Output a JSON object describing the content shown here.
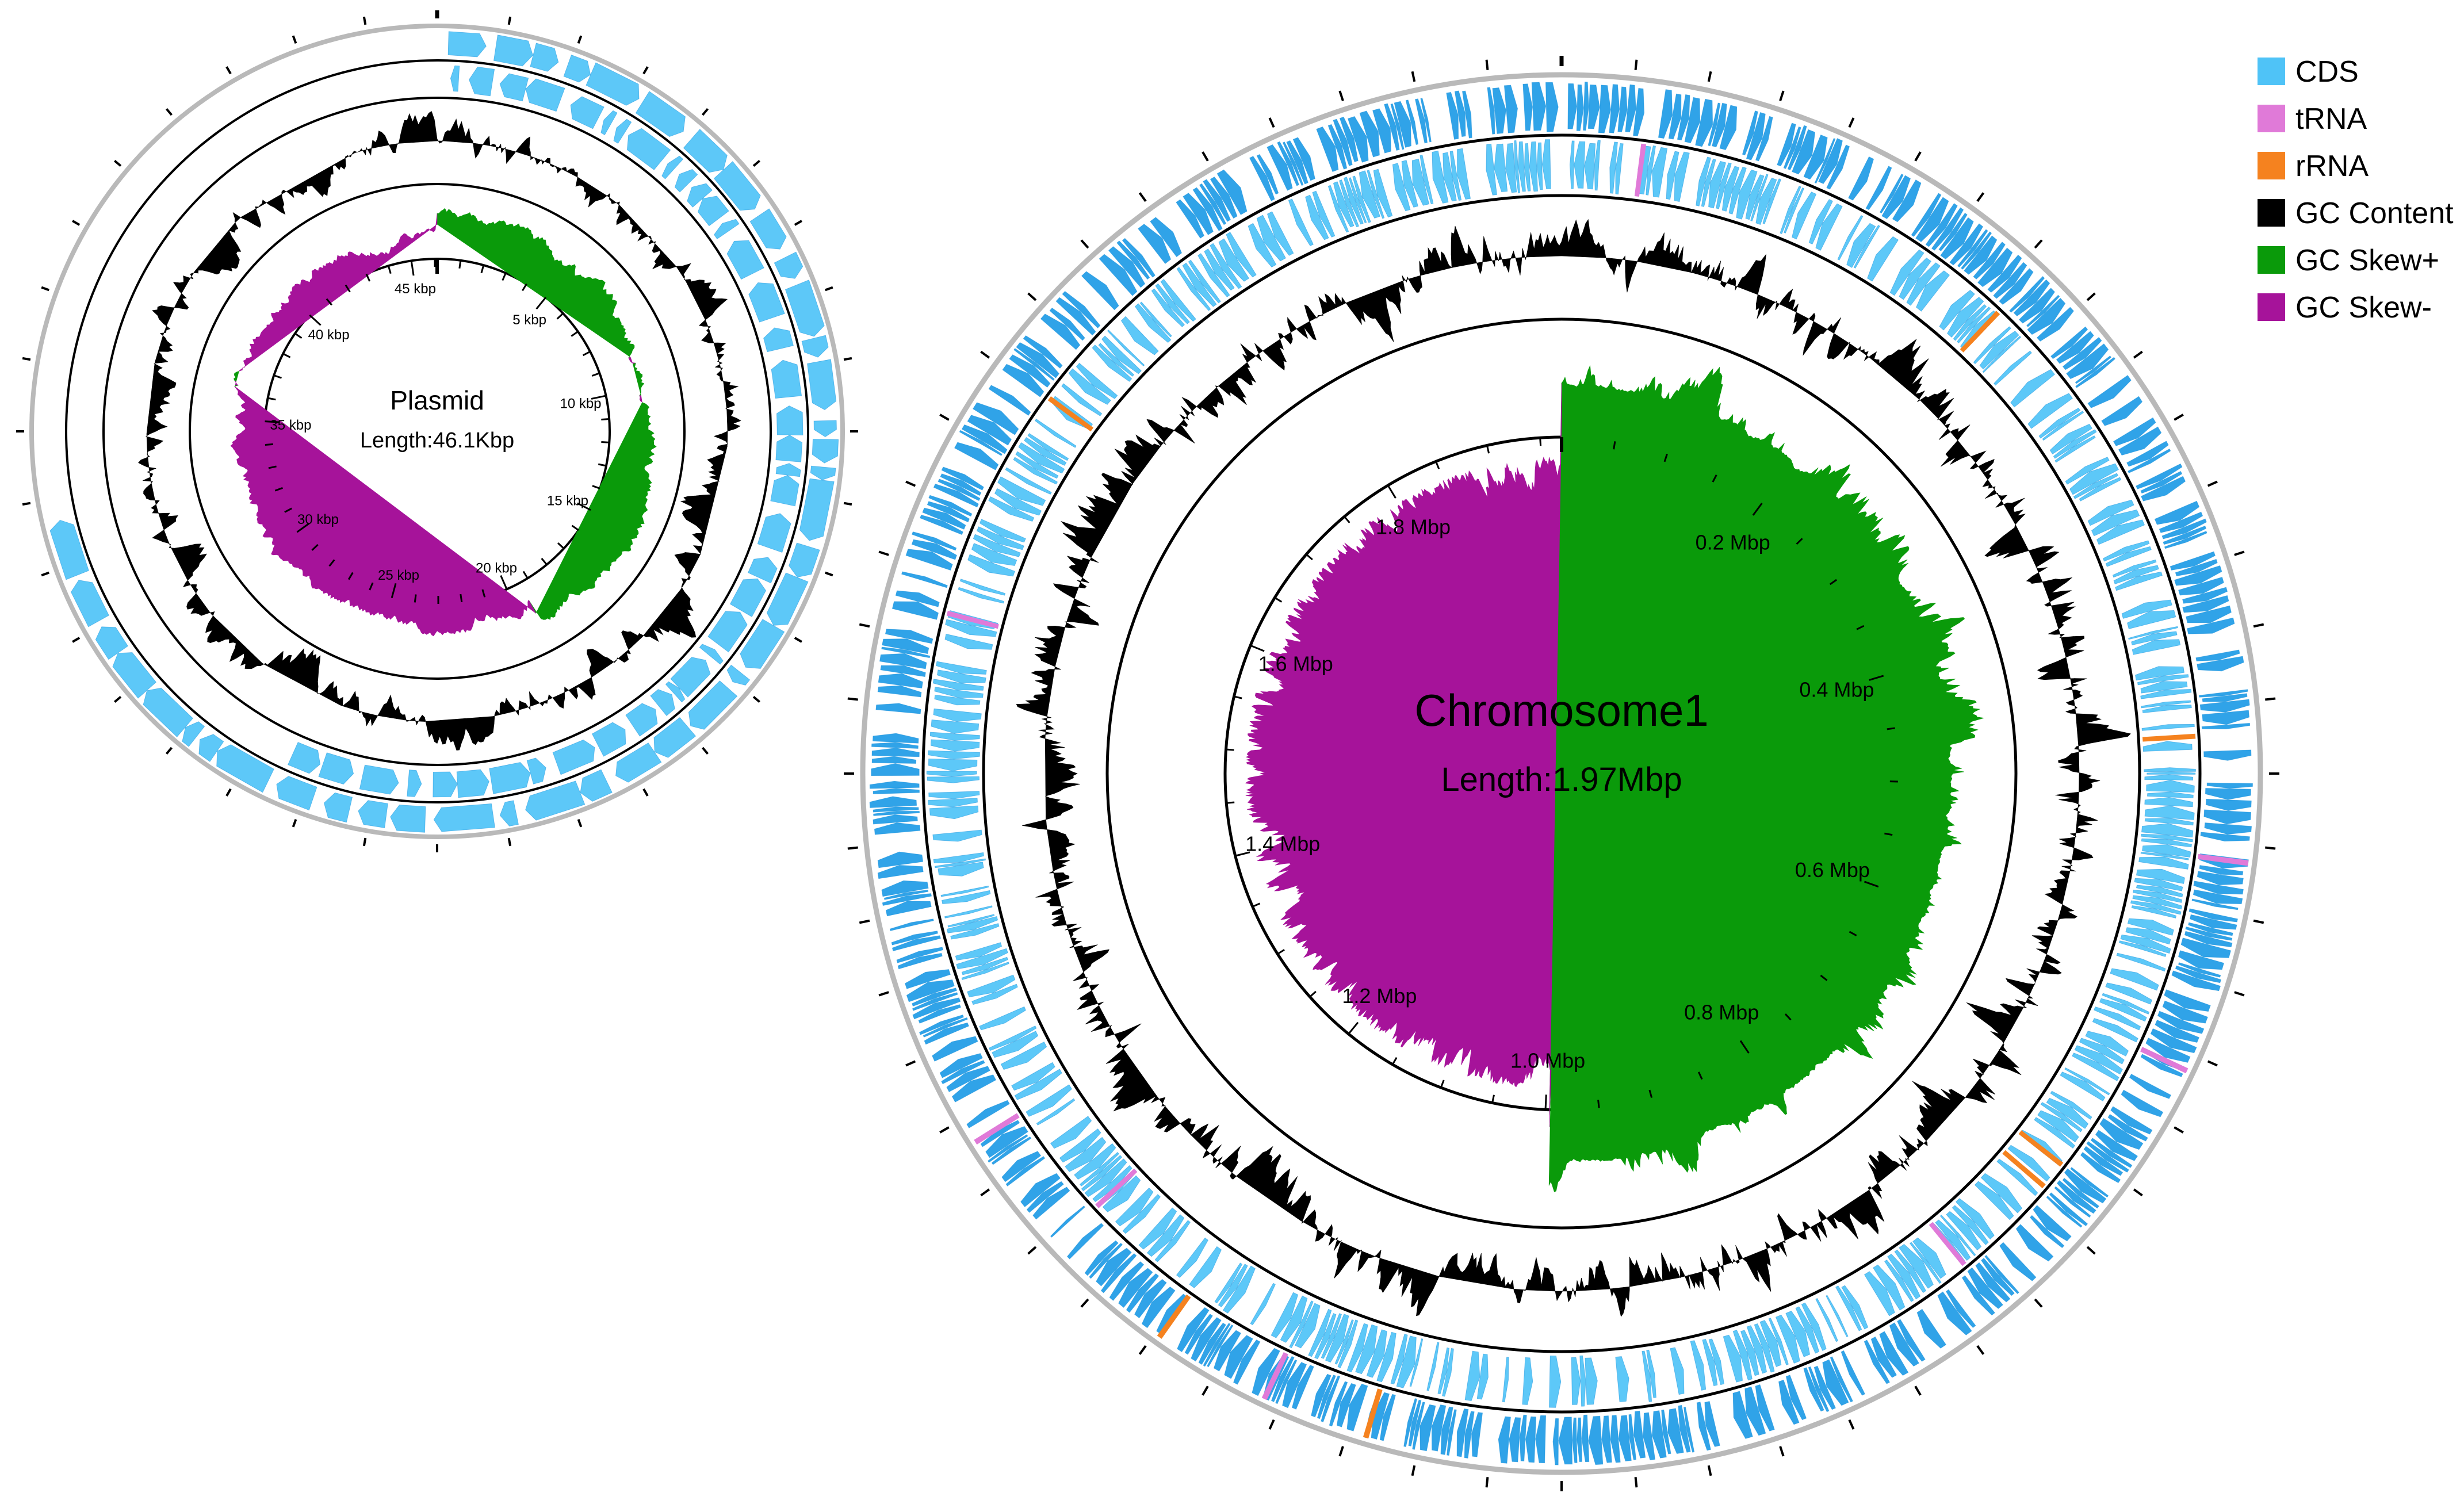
{
  "colors": {
    "cds": "#4fc3f7",
    "cds_dense": "#1e9be6",
    "trna": "#e07ad8",
    "rrna": "#f5821f",
    "gc_content": "#000000",
    "gc_skew_pos": "#0a9a0a",
    "gc_skew_neg": "#a6139a",
    "outer_ring": "#b9b9b9",
    "ring_line": "#000000"
  },
  "legend": {
    "items": [
      {
        "label": "CDS",
        "color": "#4fc3f7"
      },
      {
        "label": "tRNA",
        "color": "#e07ad8"
      },
      {
        "label": "rRNA",
        "color": "#f5821f"
      },
      {
        "label": "GC Content",
        "color": "#000000"
      },
      {
        "label": "GC Skew+",
        "color": "#0a9a0a"
      },
      {
        "label": "GC Skew-",
        "color": "#a6139a"
      }
    ]
  },
  "plasmid": {
    "title": "Plasmid",
    "length_text": "Length:46.1Kbp",
    "total_kbp": 46.1,
    "ticks": [
      {
        "label": "5 kbp",
        "value": 5
      },
      {
        "label": "10 kbp",
        "value": 10
      },
      {
        "label": "15 kbp",
        "value": 15
      },
      {
        "label": "20 kbp",
        "value": 20
      },
      {
        "label": "25 kbp",
        "value": 25
      },
      {
        "label": "30 kbp",
        "value": 30
      },
      {
        "label": "35 kbp",
        "value": 35
      },
      {
        "label": "40 kbp",
        "value": 40
      },
      {
        "label": "45 kbp",
        "value": 45
      }
    ]
  },
  "chromosome": {
    "title": "Chromosome1",
    "length_text": "Length:1.97Mbp",
    "total_mbp": 1.97,
    "ticks": [
      {
        "label": "0.2 Mbp",
        "value": 0.2
      },
      {
        "label": "0.4 Mbp",
        "value": 0.4
      },
      {
        "label": "0.6 Mbp",
        "value": 0.6
      },
      {
        "label": "0.8 Mbp",
        "value": 0.8
      },
      {
        "label": "1.0 Mbp",
        "value": 1.0
      },
      {
        "label": "1.2 Mbp",
        "value": 1.2
      },
      {
        "label": "1.4 Mbp",
        "value": 1.4
      },
      {
        "label": "1.6 Mbp",
        "value": 1.6
      },
      {
        "label": "1.8 Mbp",
        "value": 1.8
      }
    ]
  }
}
